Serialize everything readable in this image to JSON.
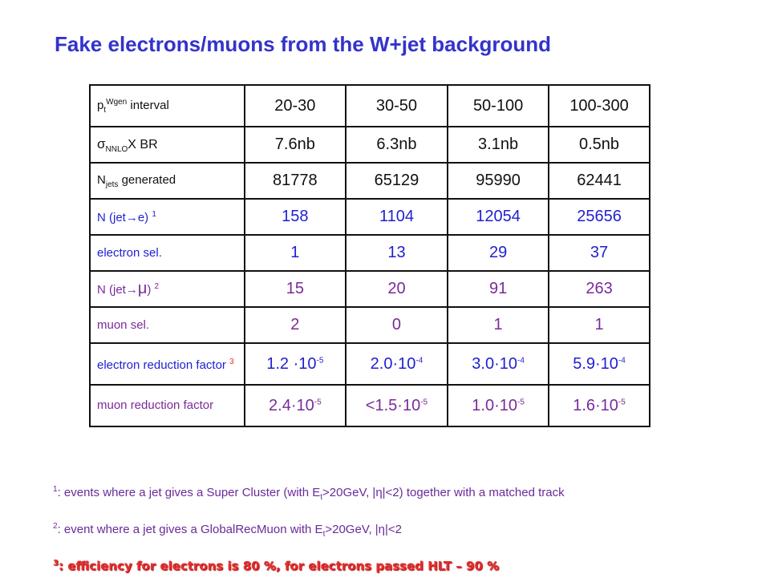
{
  "title": "Fake electrons/muons from the W+jet background",
  "table": {
    "rows": [
      {
        "label_main": "p",
        "label_sub": "t",
        "label_sup": "Wgen",
        "label_rest": " interval",
        "values": [
          "20-30",
          "30-50",
          "50-100",
          "100-300"
        ]
      },
      {
        "label_main": "σ",
        "label_sub": "NNLO",
        "label_rest": "X BR",
        "values": [
          "7.6nb",
          "6.3nb",
          "3.1nb",
          "0.5nb"
        ]
      },
      {
        "label_main": "N",
        "label_sub": "jets",
        "label_rest": " generated",
        "values": [
          "81778",
          "65129",
          "95990",
          "62441"
        ]
      },
      {
        "label_main": "N  (jet",
        "label_arrow": "→",
        "label_rest": "e) ",
        "label_sup": "1",
        "values": [
          "158",
          "1104",
          "12054",
          "25656"
        ]
      },
      {
        "label_main": "electron sel.",
        "values": [
          "1",
          "13",
          "29",
          "37"
        ]
      },
      {
        "label_main": "N  (jet",
        "label_arrow": "→",
        "label_mu": "μ",
        "label_rest": ") ",
        "label_sup": "2",
        "values": [
          "15",
          "20",
          "91",
          "263"
        ]
      },
      {
        "label_main": "muon sel.",
        "values": [
          "2",
          "0",
          "1",
          "1"
        ]
      },
      {
        "label_main": "electron reduction factor ",
        "label_sup": "3",
        "values": [
          {
            "base": "1.2 ·10",
            "exp": "-5"
          },
          {
            "base": "2.0·10",
            "exp": "-4"
          },
          {
            "base": "3.0·10",
            "exp": "-4"
          },
          {
            "base": "5.9·10",
            "exp": "-4"
          }
        ]
      },
      {
        "label_main": "muon    reduction factor",
        "values": [
          {
            "base": "2.4·10",
            "exp": "-5"
          },
          {
            "base": "<1.5·10",
            "exp": "-5"
          },
          {
            "base": "1.0·10",
            "exp": "-5"
          },
          {
            "base": "1.6·10",
            "exp": "-5"
          }
        ]
      }
    ]
  },
  "footnotes": {
    "f1_mark": "1",
    "f1_text_a": ": events where a jet gives a Super Cluster (with E",
    "f1_sub": "t",
    "f1_text_b": ">20GeV, |η|<2) together with a matched track",
    "f2_mark": "2",
    "f2_text_a": ": event where a jet gives a GlobalRecMuon with E",
    "f2_sub": "t",
    "f2_text_b": ">20GeV, |η|<2",
    "f3_mark": "3",
    "f3_text": ": efficiency for electrons is 80 %, for electrons passed HLT – 90 %"
  },
  "colors": {
    "title": "#3333cc",
    "purple_text": "#7a2a9a",
    "blue_text": "#1f1fd2",
    "footnote_red": "#e03030"
  }
}
